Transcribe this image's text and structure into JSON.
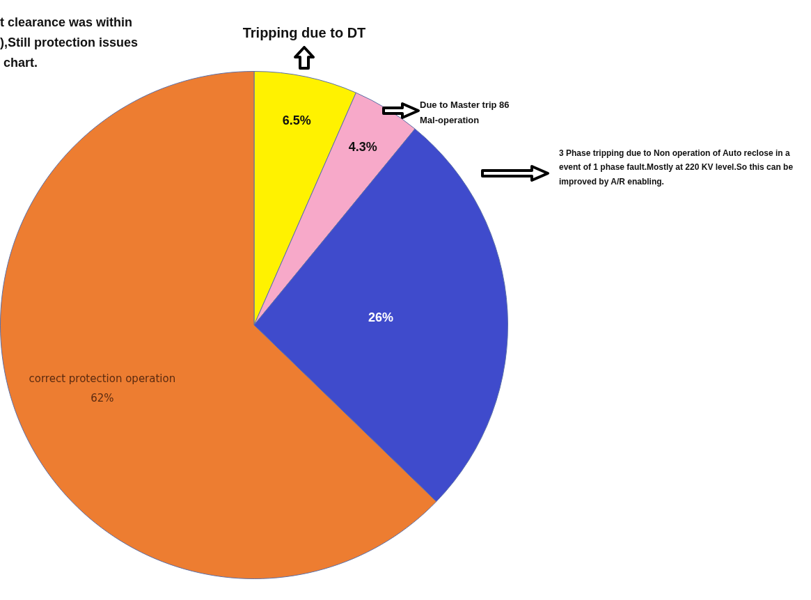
{
  "chart_data": {
    "type": "pie",
    "categories": [
      "Tripping due to DT",
      "Due to Master trip 86 Mal-operation",
      "3 Phase tripping due to Non operation of Auto reclose in a event of 1 phase fault.Mostly at 220 KV level.So this can be improved by A/R enabling.",
      "correct protection operation"
    ],
    "values": [
      6.5,
      4.3,
      26,
      62
    ],
    "colors": [
      "#fff200",
      "#f7a9c9",
      "#3f4bcc",
      "#ed7d31"
    ],
    "value_labels": [
      "6.5%",
      "4.3%",
      "26%",
      "62%"
    ],
    "annotations": [
      "t clearance was within\n),Still protection issues\n chart."
    ]
  }
}
